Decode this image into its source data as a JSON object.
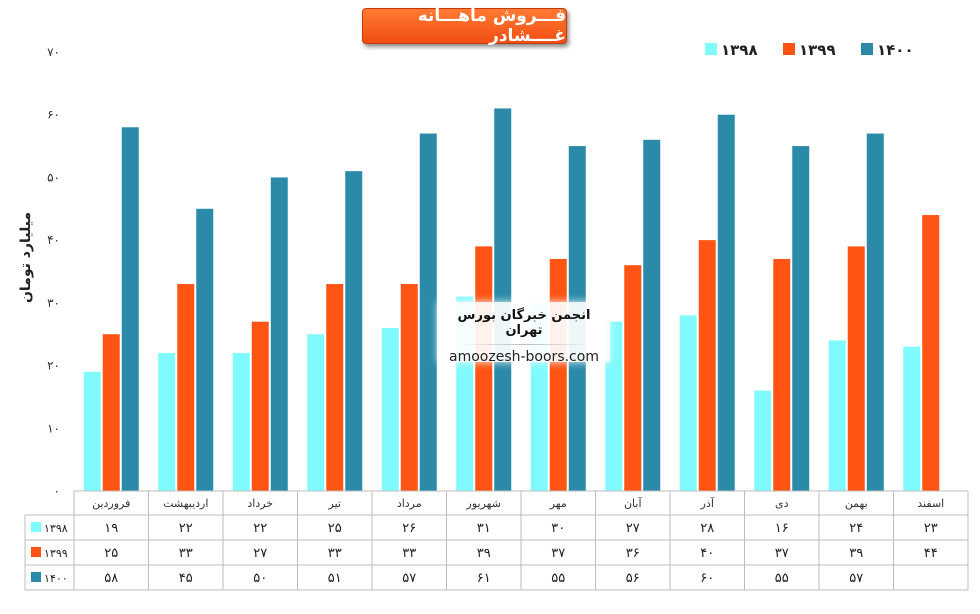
{
  "chart_data": {
    "type": "bar",
    "title": "فـــروش ماهـــانه غــــشادر",
    "ylabel": "میلیارد تومان",
    "ylim": [
      0,
      70
    ],
    "y_ticks": [
      "۰",
      "۱۰",
      "۲۰",
      "۳۰",
      "۴۰",
      "۵۰",
      "۶۰",
      "۷۰"
    ],
    "categories": [
      "فروردین",
      "اردیبهشت",
      "خرداد",
      "تیر",
      "مرداد",
      "شهریور",
      "مهر",
      "آبان",
      "آذر",
      "دی",
      "بهمن",
      "اسفند"
    ],
    "series": [
      {
        "name": "۱۳۹۸",
        "color": "#7ffaff",
        "values": [
          19,
          22,
          22,
          25,
          26,
          31,
          30,
          27,
          28,
          16,
          24,
          23
        ],
        "labels": [
          "۱۹",
          "۲۲",
          "۲۲",
          "۲۵",
          "۲۶",
          "۳۱",
          "۳۰",
          "۲۷",
          "۲۸",
          "۱۶",
          "۲۴",
          "۲۳"
        ]
      },
      {
        "name": "۱۳۹۹",
        "color": "#ff5414",
        "values": [
          25,
          33,
          27,
          33,
          33,
          39,
          37,
          36,
          40,
          37,
          39,
          44
        ],
        "labels": [
          "۲۵",
          "۳۳",
          "۲۷",
          "۳۳",
          "۳۳",
          "۳۹",
          "۳۷",
          "۳۶",
          "۴۰",
          "۳۷",
          "۳۹",
          "۴۴"
        ]
      },
      {
        "name": "۱۴۰۰",
        "color": "#2a8aa8",
        "values": [
          58,
          45,
          50,
          51,
          57,
          61,
          55,
          56,
          60,
          55,
          57,
          null
        ],
        "labels": [
          "۵۸",
          "۴۵",
          "۵۰",
          "۵۱",
          "۵۷",
          "۶۱",
          "۵۵",
          "۵۶",
          "۶۰",
          "۵۵",
          "۵۷",
          ""
        ]
      }
    ],
    "legend": "top-right",
    "grid": false,
    "data_table": true
  },
  "watermark": {
    "title": "انجمن خبرگان بورس تهران",
    "site": "amoozesh-boors.com"
  }
}
